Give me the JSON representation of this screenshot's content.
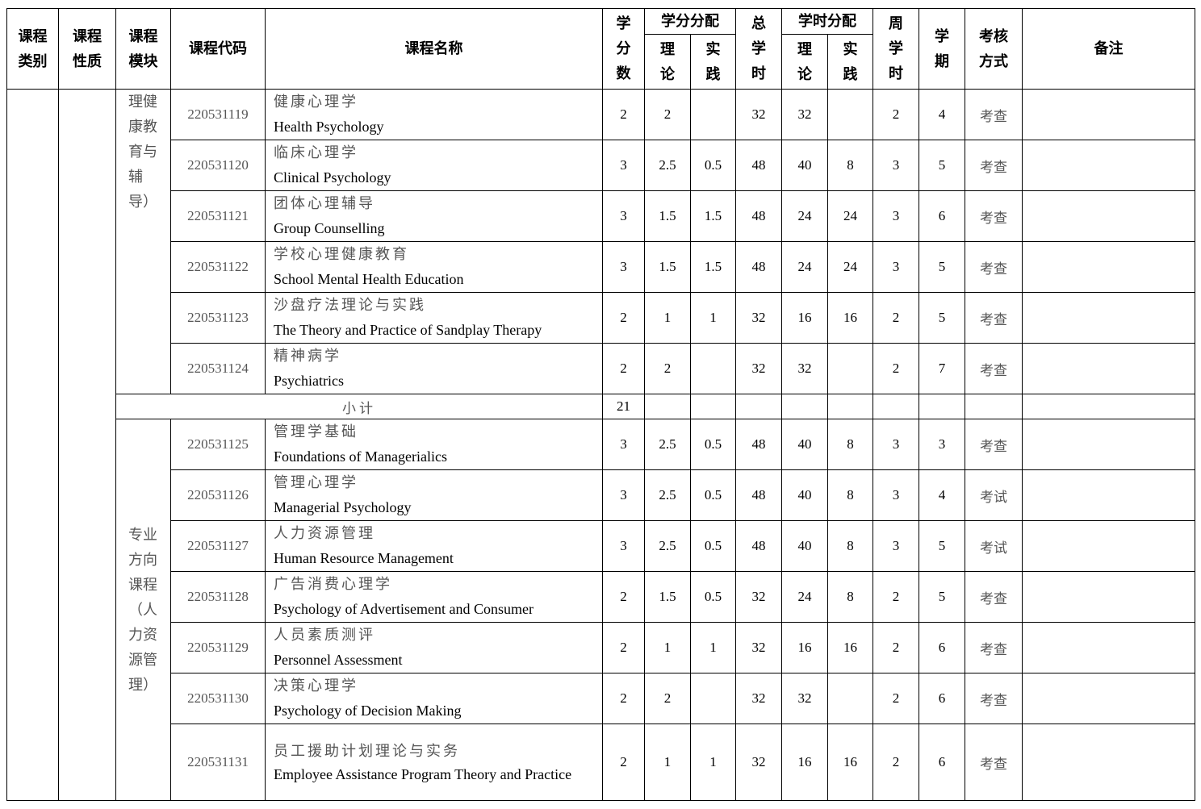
{
  "header": {
    "category": [
      "课程",
      "类别"
    ],
    "nature": [
      "课程",
      "性质"
    ],
    "module": [
      "课程",
      "模块"
    ],
    "code": "课程代码",
    "name": "课程名称",
    "credits": [
      "学",
      "分",
      "数"
    ],
    "credit_dist": "学分分配",
    "theory": [
      "理",
      "论"
    ],
    "practice": [
      "实",
      "践"
    ],
    "total_hours": [
      "总",
      "学",
      "时"
    ],
    "hour_dist": "学时分配",
    "weekly": [
      "周",
      "学",
      "时"
    ],
    "term": [
      "学",
      "期"
    ],
    "assessment": [
      "考核",
      "方式"
    ],
    "remarks": "备注"
  },
  "groups": [
    {
      "module_lines": [
        "理健",
        "康教",
        "育与",
        "辅",
        "导）"
      ],
      "rows": [
        {
          "code": "220531119",
          "cn": "健康心理学",
          "en": "Health Psychology",
          "credits": "2",
          "ct": "2",
          "cp": "",
          "hours": "32",
          "ht": "32",
          "hp": "",
          "weekly": "2",
          "term": "4",
          "assess": "考查"
        },
        {
          "code": "220531120",
          "cn": "临床心理学",
          "en": "Clinical Psychology",
          "credits": "3",
          "ct": "2.5",
          "cp": "0.5",
          "hours": "48",
          "ht": "40",
          "hp": "8",
          "weekly": "3",
          "term": "5",
          "assess": "考查"
        },
        {
          "code": "220531121",
          "cn": "团体心理辅导",
          "en": "Group Counselling",
          "credits": "3",
          "ct": "1.5",
          "cp": "1.5",
          "hours": "48",
          "ht": "24",
          "hp": "24",
          "weekly": "3",
          "term": "6",
          "assess": "考查"
        },
        {
          "code": "220531122",
          "cn": "学校心理健康教育",
          "en": "School Mental Health Education",
          "credits": "3",
          "ct": "1.5",
          "cp": "1.5",
          "hours": "48",
          "ht": "24",
          "hp": "24",
          "weekly": "3",
          "term": "5",
          "assess": "考查"
        },
        {
          "code": "220531123",
          "cn": "沙盘疗法理论与实践",
          "en": "The Theory and Practice of Sandplay Therapy",
          "credits": "2",
          "ct": "1",
          "cp": "1",
          "hours": "32",
          "ht": "16",
          "hp": "16",
          "weekly": "2",
          "term": "5",
          "assess": "考查"
        },
        {
          "code": "220531124",
          "cn": "精神病学",
          "en": "Psychiatrics",
          "credits": "2",
          "ct": "2",
          "cp": "",
          "hours": "32",
          "ht": "32",
          "hp": "",
          "weekly": "2",
          "term": "7",
          "assess": "考查"
        }
      ],
      "subtotal": {
        "label": "小计",
        "credits": "21"
      }
    },
    {
      "module_lines": [
        "专业",
        "方向",
        "课程",
        "（人",
        "力资",
        "源管",
        "理）"
      ],
      "rows": [
        {
          "code": "220531125",
          "cn": "管理学基础",
          "en": "Foundations of Managerialics",
          "credits": "3",
          "ct": "2.5",
          "cp": "0.5",
          "hours": "48",
          "ht": "40",
          "hp": "8",
          "weekly": "3",
          "term": "3",
          "assess": "考查"
        },
        {
          "code": "220531126",
          "cn": "管理心理学",
          "en": "Managerial Psychology",
          "credits": "3",
          "ct": "2.5",
          "cp": "0.5",
          "hours": "48",
          "ht": "40",
          "hp": "8",
          "weekly": "3",
          "term": "4",
          "assess": "考试"
        },
        {
          "code": "220531127",
          "cn": "人力资源管理",
          "en": "Human Resource Management",
          "credits": "3",
          "ct": "2.5",
          "cp": "0.5",
          "hours": "48",
          "ht": "40",
          "hp": "8",
          "weekly": "3",
          "term": "5",
          "assess": "考试"
        },
        {
          "code": "220531128",
          "cn": "广告消费心理学",
          "en": "Psychology of Advertisement and Consumer",
          "credits": "2",
          "ct": "1.5",
          "cp": "0.5",
          "hours": "32",
          "ht": "24",
          "hp": "8",
          "weekly": "2",
          "term": "5",
          "assess": "考查"
        },
        {
          "code": "220531129",
          "cn": "人员素质测评",
          "en": "Personnel Assessment",
          "credits": "2",
          "ct": "1",
          "cp": "1",
          "hours": "32",
          "ht": "16",
          "hp": "16",
          "weekly": "2",
          "term": "6",
          "assess": "考查"
        },
        {
          "code": "220531130",
          "cn": "决策心理学",
          "en": "Psychology of Decision Making",
          "credits": "2",
          "ct": "2",
          "cp": "",
          "hours": "32",
          "ht": "32",
          "hp": "",
          "weekly": "2",
          "term": "6",
          "assess": "考查"
        },
        {
          "code": "220531131",
          "cn": "员工援助计划理论与实务",
          "en": "Employee Assistance Program Theory and Practice",
          "credits": "2",
          "ct": "1",
          "cp": "1",
          "hours": "32",
          "ht": "16",
          "hp": "16",
          "weekly": "2",
          "term": "6",
          "assess": "考查"
        }
      ]
    }
  ]
}
